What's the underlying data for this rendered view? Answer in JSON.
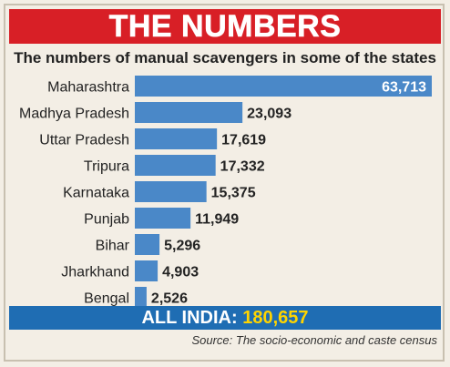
{
  "header": {
    "title": "THE NUMBERS"
  },
  "chart_data": {
    "type": "bar",
    "orientation": "horizontal",
    "title": "The numbers of manual scavengers in some of the states",
    "categories": [
      "Maharashtra",
      "Madhya Pradesh",
      "Uttar Pradesh",
      "Tripura",
      "Karnataka",
      "Punjab",
      "Bihar",
      "Jharkhand",
      "Bengal"
    ],
    "values": [
      63713,
      23093,
      17619,
      17332,
      15375,
      11949,
      5296,
      4903,
      2526
    ],
    "value_labels": [
      "63,713",
      "23,093",
      "17,619",
      "17,332",
      "15,375",
      "11,949",
      "5,296",
      "4,903",
      "2,526"
    ],
    "bar_color": "#4a88c8",
    "grid": false
  },
  "total": {
    "label": "ALL INDIA:",
    "value": "180,657"
  },
  "footer": {
    "source": "Source: The socio-economic and caste census"
  },
  "colors": {
    "title_bg": "#d81f26",
    "total_bg": "#1f6db3",
    "total_value": "#ffd400",
    "background": "#f3eee5"
  }
}
